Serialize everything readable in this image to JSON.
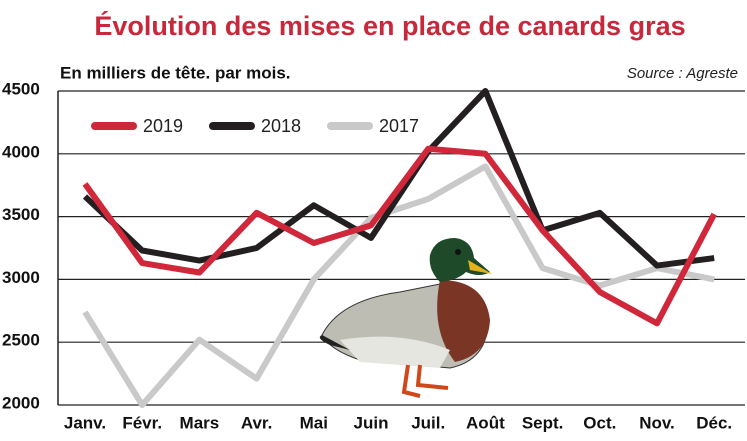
{
  "chart_data": {
    "type": "line",
    "title": "Évolution des mises en place de canards gras",
    "subtitle": "En milliers de tête. par mois.",
    "source": "Source : Agreste",
    "categories": [
      "Janv.",
      "Févr.",
      "Mars",
      "Avr.",
      "Mai",
      "Juin",
      "Juil.",
      "Août",
      "Sept.",
      "Oct.",
      "Nov.",
      "Déc."
    ],
    "series": [
      {
        "name": "2019",
        "color": "#d0283a",
        "values": [
          3760,
          3130,
          3055,
          3530,
          3290,
          3430,
          4040,
          4000,
          3390,
          2900,
          2650,
          3520
        ]
      },
      {
        "name": "2018",
        "color": "#231f20",
        "values": [
          3660,
          3230,
          3150,
          3250,
          3590,
          3330,
          4020,
          4500,
          3390,
          3530,
          3110,
          3170
        ]
      },
      {
        "name": "2017",
        "color": "#c9c9c9",
        "values": [
          2740,
          2000,
          2520,
          2210,
          3000,
          3490,
          3640,
          3900,
          3090,
          2950,
          3090,
          3000
        ]
      }
    ],
    "ylim": [
      2000,
      4500
    ],
    "yticks": [
      2000,
      2500,
      3000,
      3500,
      4000,
      4500
    ],
    "grid": true
  }
}
